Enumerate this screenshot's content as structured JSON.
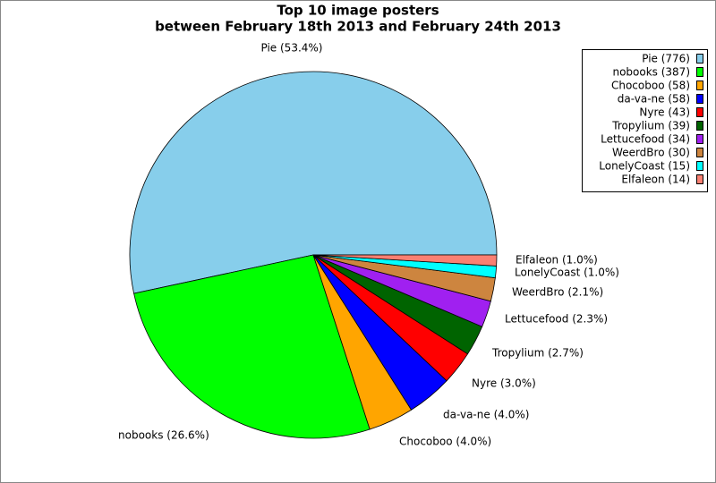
{
  "chart_data": {
    "type": "pie",
    "title": "Top 10 image posters",
    "subtitle": "between February 18th 2013 and February 24th 2013",
    "values": [
      776,
      387,
      58,
      58,
      43,
      39,
      34,
      30,
      15,
      14
    ],
    "value_labels": [
      "Pie (53.4%)",
      "nobooks (26.6%)",
      "Chocoboo (4.0%)",
      "da-va-ne (4.0%)",
      "Nyre (3.0%)",
      "Tropylium (2.7%)",
      "Lettucefood (2.3%)",
      "WeerdBro (2.1%)",
      "LonelyCoast (1.0%)",
      "Elfaleon (1.0%)"
    ],
    "legend_labels": [
      "Pie (776)",
      "nobooks (387)",
      "Chocoboo (58)",
      "da-va-ne (58)",
      "Nyre (43)",
      "Tropylium (39)",
      "Lettucefood (34)",
      "WeerdBro (30)",
      "LonelyCoast (15)",
      "Elfaleon (14)"
    ],
    "colors": [
      "#87ceeb",
      "#00ff00",
      "#ffa500",
      "#0000ff",
      "#ff0000",
      "#006400",
      "#a020f0",
      "#cd853f",
      "#00ffff",
      "#fa8072"
    ],
    "legend_position": "upper right"
  }
}
